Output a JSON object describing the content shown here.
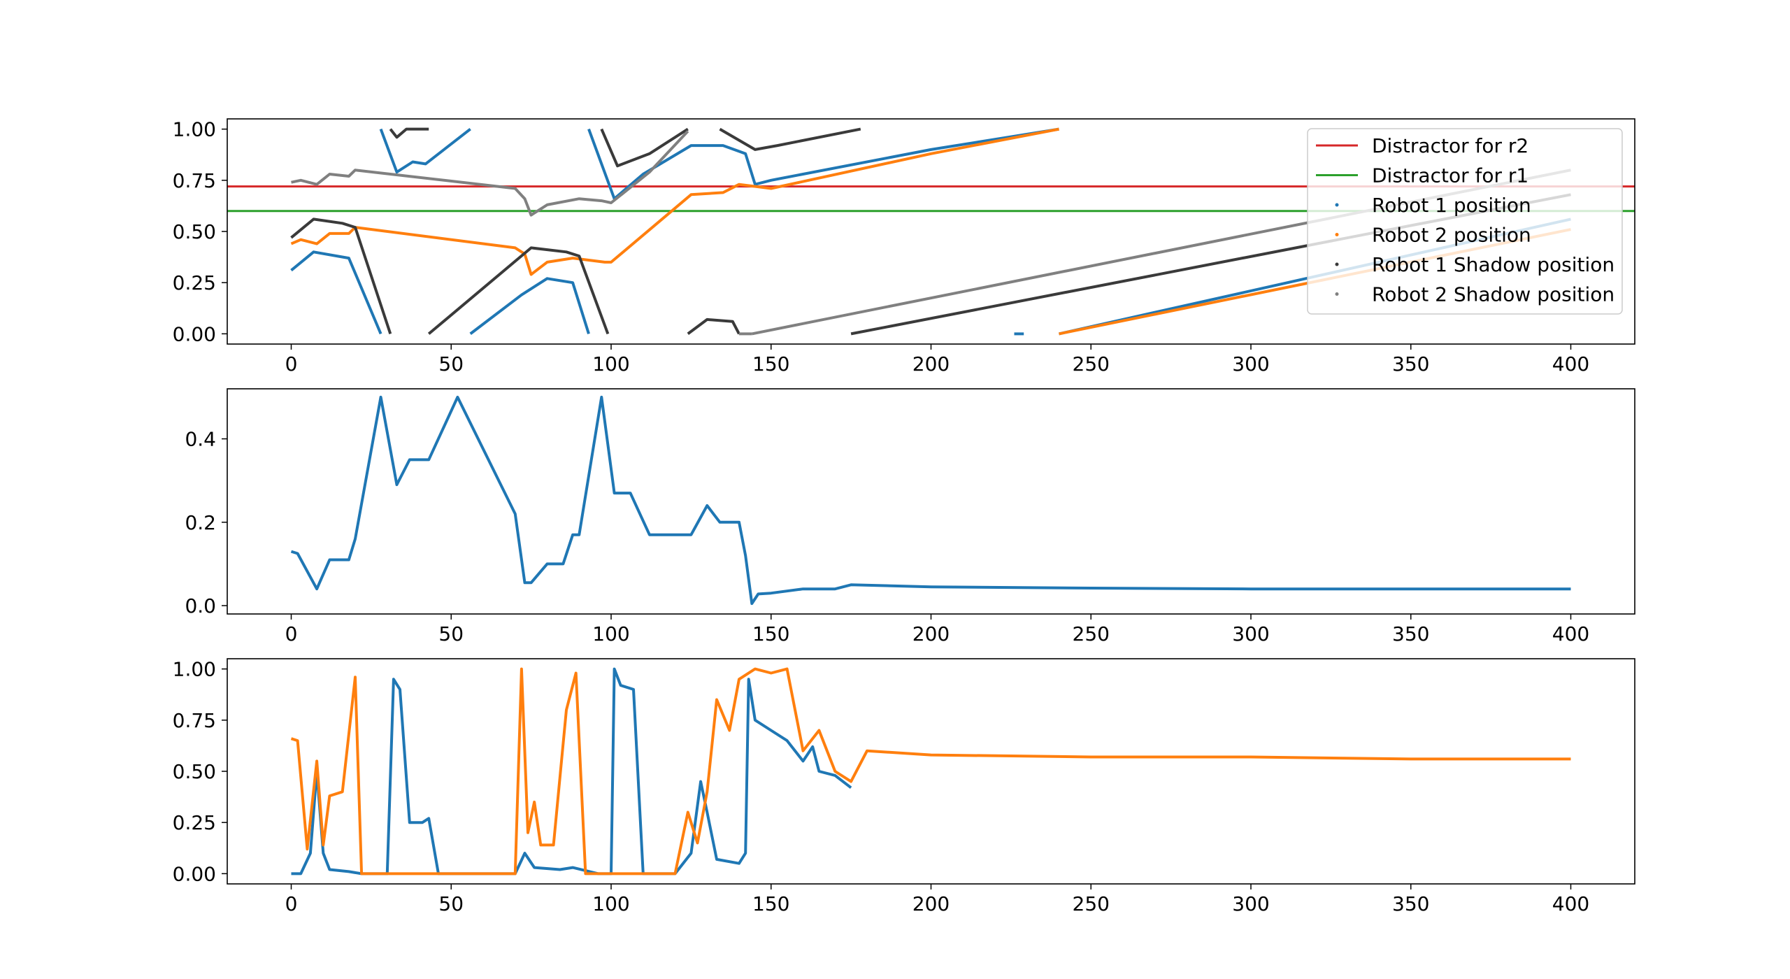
{
  "chart_data": [
    {
      "id": "top",
      "type": "line",
      "xlim": [
        -20,
        420
      ],
      "ylim": [
        -0.05,
        1.05
      ],
      "xticks": [
        "0",
        "50",
        "100",
        "150",
        "200",
        "250",
        "300",
        "350",
        "400"
      ],
      "yticks": [
        "0.00",
        "0.25",
        "0.50",
        "0.75",
        "1.00"
      ],
      "grid": false,
      "legend": {
        "placement": "upper right",
        "entries": [
          {
            "label": "Distractor for r2",
            "color": "#d62728",
            "marker": "line"
          },
          {
            "label": "Distractor for r1",
            "color": "#2ca02c",
            "marker": "line"
          },
          {
            "label": "Robot 1 position",
            "color": "#1f77b4",
            "marker": "dot"
          },
          {
            "label": "Robot 2 position",
            "color": "#ff7f0e",
            "marker": "dot"
          },
          {
            "label": "Robot 1 Shadow position",
            "color": "#3a3a3a",
            "marker": "dot"
          },
          {
            "label": "Robot 2 Shadow position",
            "color": "#808080",
            "marker": "dot"
          }
        ]
      },
      "hlines": [
        {
          "name": "Distractor for r2",
          "y": 0.72,
          "color": "#d62728"
        },
        {
          "name": "Distractor for r1",
          "y": 0.6,
          "color": "#2ca02c"
        }
      ],
      "series": [
        {
          "name": "Robot 1 position",
          "color": "#1f77b4",
          "segments": [
            [
              [
                0,
                0.31
              ],
              [
                7,
                0.4
              ],
              [
                18,
                0.37
              ],
              [
                28,
                0.0
              ]
            ],
            [
              [
                28,
                1.0
              ],
              [
                33,
                0.79
              ],
              [
                38,
                0.84
              ],
              [
                42,
                0.83
              ],
              [
                56,
                1.0
              ]
            ],
            [
              [
                56,
                0.0
              ],
              [
                72,
                0.19
              ],
              [
                80,
                0.27
              ],
              [
                88,
                0.25
              ],
              [
                93,
                0.0
              ]
            ],
            [
              [
                93,
                1.0
              ],
              [
                101,
                0.66
              ],
              [
                110,
                0.78
              ],
              [
                125,
                0.92
              ],
              [
                135,
                0.92
              ],
              [
                142,
                0.88
              ],
              [
                145,
                0.73
              ],
              [
                150,
                0.75
              ],
              [
                200,
                0.9
              ],
              [
                240,
                1.0
              ]
            ],
            [
              [
                226,
                0.0
              ],
              [
                229,
                0.0
              ]
            ],
            [
              [
                240,
                0.0
              ],
              [
                400,
                0.56
              ]
            ]
          ]
        },
        {
          "name": "Robot 2 position",
          "color": "#ff7f0e",
          "segments": [
            [
              [
                0,
                0.44
              ],
              [
                3,
                0.46
              ],
              [
                8,
                0.44
              ],
              [
                12,
                0.49
              ],
              [
                18,
                0.49
              ],
              [
                20,
                0.52
              ],
              [
                70,
                0.42
              ],
              [
                73,
                0.39
              ],
              [
                75,
                0.29
              ],
              [
                80,
                0.35
              ],
              [
                88,
                0.37
              ],
              [
                98,
                0.35
              ],
              [
                100,
                0.35
              ],
              [
                125,
                0.68
              ],
              [
                135,
                0.69
              ],
              [
                140,
                0.73
              ],
              [
                150,
                0.71
              ],
              [
                200,
                0.88
              ],
              [
                240,
                1.0
              ]
            ],
            [
              [
                240,
                0.0
              ],
              [
                400,
                0.51
              ]
            ]
          ]
        },
        {
          "name": "Robot 1 Shadow position",
          "color": "#3a3a3a",
          "segments": [
            [
              [
                0,
                0.47
              ],
              [
                7,
                0.56
              ],
              [
                16,
                0.54
              ],
              [
                20,
                0.52
              ],
              [
                31,
                0.0
              ]
            ],
            [
              [
                31,
                1.0
              ],
              [
                33,
                0.96
              ],
              [
                36,
                1.0
              ],
              [
                43,
                1.0
              ]
            ],
            [
              [
                43,
                0.0
              ],
              [
                75,
                0.42
              ],
              [
                86,
                0.4
              ],
              [
                90,
                0.38
              ],
              [
                99,
                0.0
              ]
            ],
            [
              [
                97,
                1.0
              ],
              [
                102,
                0.82
              ],
              [
                112,
                0.88
              ],
              [
                124,
                1.0
              ]
            ],
            [
              [
                124,
                0.0
              ],
              [
                130,
                0.07
              ],
              [
                138,
                0.06
              ],
              [
                140,
                0.0
              ]
            ],
            [
              [
                134,
                1.0
              ],
              [
                145,
                0.9
              ],
              [
                152,
                0.92
              ],
              [
                178,
                1.0
              ]
            ],
            [
              [
                175,
                0.0
              ],
              [
                400,
                0.68
              ]
            ]
          ]
        },
        {
          "name": "Robot 2 Shadow position",
          "color": "#808080",
          "segments": [
            [
              [
                0,
                0.74
              ],
              [
                3,
                0.75
              ],
              [
                8,
                0.73
              ],
              [
                12,
                0.78
              ],
              [
                18,
                0.77
              ],
              [
                20,
                0.8
              ],
              [
                70,
                0.71
              ],
              [
                73,
                0.66
              ],
              [
                75,
                0.58
              ],
              [
                80,
                0.63
              ],
              [
                90,
                0.66
              ],
              [
                97,
                0.65
              ],
              [
                100,
                0.64
              ],
              [
                112,
                0.79
              ],
              [
                124,
                0.99
              ]
            ],
            [
              [
                140,
                0.0
              ],
              [
                144,
                0.0
              ]
            ],
            [
              [
                144,
                0.0
              ],
              [
                400,
                0.8
              ]
            ]
          ]
        }
      ]
    },
    {
      "id": "middle",
      "type": "line",
      "xlim": [
        -20,
        420
      ],
      "ylim": [
        -0.02,
        0.52
      ],
      "xticks": [
        "0",
        "50",
        "100",
        "150",
        "200",
        "250",
        "300",
        "350",
        "400"
      ],
      "yticks": [
        "0.0",
        "0.2",
        "0.4"
      ],
      "grid": false,
      "series": [
        {
          "name": "",
          "color": "#1f77b4",
          "points": [
            [
              0,
              0.13
            ],
            [
              2,
              0.125
            ],
            [
              8,
              0.04
            ],
            [
              12,
              0.11
            ],
            [
              18,
              0.11
            ],
            [
              20,
              0.16
            ],
            [
              28,
              0.5
            ],
            [
              33,
              0.29
            ],
            [
              37,
              0.35
            ],
            [
              43,
              0.35
            ],
            [
              52,
              0.5
            ],
            [
              70,
              0.22
            ],
            [
              73,
              0.055
            ],
            [
              75,
              0.055
            ],
            [
              80,
              0.1
            ],
            [
              85,
              0.1
            ],
            [
              88,
              0.17
            ],
            [
              90,
              0.17
            ],
            [
              97,
              0.5
            ],
            [
              101,
              0.27
            ],
            [
              106,
              0.27
            ],
            [
              112,
              0.17
            ],
            [
              125,
              0.17
            ],
            [
              130,
              0.24
            ],
            [
              134,
              0.2
            ],
            [
              140,
              0.2
            ],
            [
              142,
              0.12
            ],
            [
              144,
              0.005
            ],
            [
              146,
              0.028
            ],
            [
              150,
              0.03
            ],
            [
              160,
              0.04
            ],
            [
              170,
              0.04
            ],
            [
              175,
              0.05
            ],
            [
              200,
              0.045
            ],
            [
              250,
              0.042
            ],
            [
              300,
              0.04
            ],
            [
              350,
              0.04
            ],
            [
              400,
              0.04
            ]
          ]
        }
      ]
    },
    {
      "id": "bottom",
      "type": "line",
      "xlim": [
        -20,
        420
      ],
      "ylim": [
        -0.05,
        1.05
      ],
      "xticks": [
        "0",
        "50",
        "100",
        "150",
        "200",
        "250",
        "300",
        "350",
        "400"
      ],
      "yticks": [
        "0.00",
        "0.25",
        "0.50",
        "0.75",
        "1.00"
      ],
      "grid": false,
      "series": [
        {
          "name": "",
          "color": "#1f77b4",
          "points": [
            [
              0,
              0.0
            ],
            [
              3,
              0.0
            ],
            [
              6,
              0.1
            ],
            [
              8,
              0.5
            ],
            [
              10,
              0.1
            ],
            [
              12,
              0.02
            ],
            [
              18,
              0.01
            ],
            [
              22,
              0.0
            ],
            [
              30,
              0.0
            ],
            [
              32,
              0.95
            ],
            [
              34,
              0.9
            ],
            [
              37,
              0.25
            ],
            [
              41,
              0.25
            ],
            [
              43,
              0.27
            ],
            [
              46,
              0.0
            ],
            [
              70,
              0.0
            ],
            [
              73,
              0.1
            ],
            [
              76,
              0.03
            ],
            [
              84,
              0.02
            ],
            [
              88,
              0.03
            ],
            [
              96,
              0.0
            ],
            [
              100,
              0.0
            ],
            [
              101,
              1.0
            ],
            [
              103,
              0.92
            ],
            [
              107,
              0.9
            ],
            [
              110,
              0.0
            ],
            [
              120,
              0.0
            ],
            [
              125,
              0.1
            ],
            [
              128,
              0.45
            ],
            [
              130,
              0.3
            ],
            [
              133,
              0.07
            ],
            [
              140,
              0.05
            ],
            [
              142,
              0.1
            ],
            [
              143,
              0.95
            ],
            [
              145,
              0.75
            ],
            [
              150,
              0.7
            ],
            [
              155,
              0.65
            ],
            [
              160,
              0.55
            ],
            [
              163,
              0.62
            ],
            [
              165,
              0.5
            ],
            [
              170,
              0.48
            ],
            [
              175,
              0.42
            ]
          ]
        },
        {
          "name": "",
          "color": "#ff7f0e",
          "points": [
            [
              0,
              0.66
            ],
            [
              2,
              0.65
            ],
            [
              5,
              0.12
            ],
            [
              8,
              0.55
            ],
            [
              10,
              0.14
            ],
            [
              12,
              0.38
            ],
            [
              16,
              0.4
            ],
            [
              20,
              0.96
            ],
            [
              22,
              0.0
            ],
            [
              70,
              0.0
            ],
            [
              72,
              1.0
            ],
            [
              74,
              0.2
            ],
            [
              76,
              0.35
            ],
            [
              78,
              0.14
            ],
            [
              82,
              0.14
            ],
            [
              86,
              0.8
            ],
            [
              89,
              0.98
            ],
            [
              92,
              0.0
            ],
            [
              120,
              0.0
            ],
            [
              124,
              0.3
            ],
            [
              127,
              0.15
            ],
            [
              130,
              0.4
            ],
            [
              133,
              0.85
            ],
            [
              137,
              0.7
            ],
            [
              140,
              0.95
            ],
            [
              145,
              1.0
            ],
            [
              150,
              0.98
            ],
            [
              155,
              1.0
            ],
            [
              160,
              0.6
            ],
            [
              165,
              0.7
            ],
            [
              170,
              0.5
            ],
            [
              175,
              0.45
            ],
            [
              180,
              0.6
            ],
            [
              200,
              0.58
            ],
            [
              250,
              0.57
            ],
            [
              300,
              0.57
            ],
            [
              350,
              0.56
            ],
            [
              400,
              0.56
            ]
          ]
        }
      ]
    }
  ]
}
